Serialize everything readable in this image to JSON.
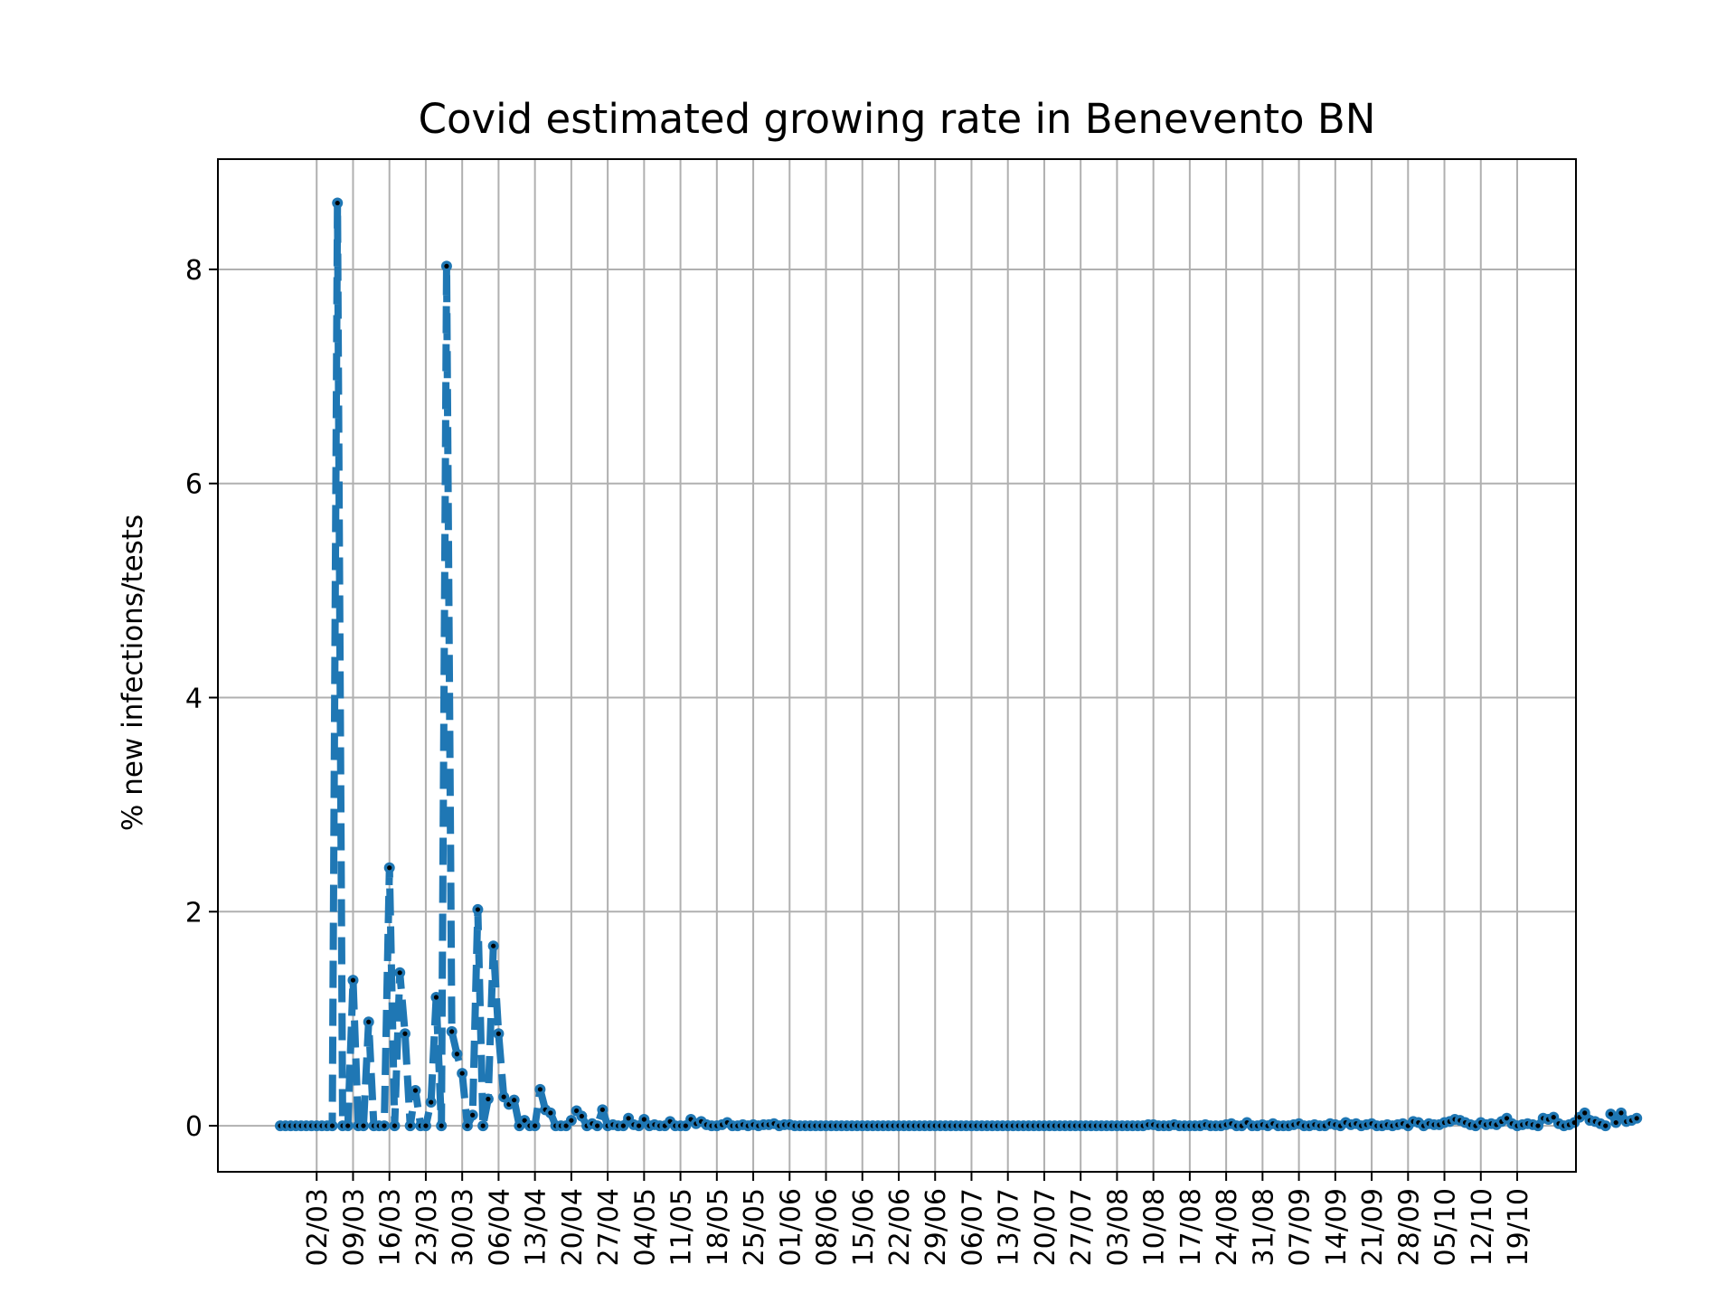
{
  "chart_data": {
    "type": "line",
    "title": "Covid estimated growing rate in Benevento BN",
    "xlabel": "",
    "ylabel": "% new infections/tests",
    "x_start": "2020-02-24",
    "x_end": "2020-10-19",
    "xtick_labels": [
      "02/03",
      "09/03",
      "16/03",
      "23/03",
      "30/03",
      "06/04",
      "13/04",
      "20/04",
      "27/04",
      "04/05",
      "11/05",
      "18/05",
      "25/05",
      "01/06",
      "08/06",
      "15/06",
      "22/06",
      "29/06",
      "06/07",
      "13/07",
      "20/07",
      "27/07",
      "03/08",
      "10/08",
      "17/08",
      "24/08",
      "31/08",
      "07/09",
      "14/09",
      "21/09",
      "28/09",
      "05/10",
      "12/10",
      "19/10"
    ],
    "yticks": [
      0,
      2,
      4,
      6,
      8
    ],
    "ylim": [
      -0.43,
      9.03
    ],
    "grid": true,
    "legend": "none",
    "series": [
      {
        "color": "#1f77b4",
        "values": [
          0,
          0,
          0,
          0,
          0,
          0,
          0,
          0,
          0,
          0,
          0,
          8.62,
          0,
          0,
          1.36,
          0,
          0,
          0.97,
          0,
          0,
          0,
          2.41,
          0,
          1.43,
          0.86,
          0,
          0.33,
          0,
          0,
          0.22,
          1.2,
          0,
          8.03,
          0.88,
          0.67,
          0.49,
          0,
          0.1,
          2.02,
          0,
          0.25,
          1.68,
          0.86,
          0.27,
          0.2,
          0.24,
          0,
          0.05,
          0,
          0,
          0.34,
          0.15,
          0.12,
          0,
          0,
          0,
          0.05,
          0.14,
          0.09,
          0,
          0.02,
          0,
          0.15,
          0,
          0.01,
          0,
          0,
          0.07,
          0.01,
          0,
          0.06,
          0,
          0.01,
          0,
          0,
          0.04,
          0,
          0,
          0,
          0.06,
          0.02,
          0.04,
          0.01,
          0,
          0,
          0.01,
          0.03,
          0,
          0,
          0.01,
          0,
          0.01,
          0,
          0.01,
          0.01,
          0.02,
          0,
          0.01,
          0.01,
          0,
          0,
          0,
          0,
          0,
          0,
          0,
          0,
          0,
          0,
          0,
          0,
          0,
          0,
          0,
          0,
          0,
          0,
          0,
          0,
          0,
          0,
          0,
          0,
          0,
          0,
          0,
          0,
          0,
          0,
          0,
          0,
          0,
          0,
          0,
          0,
          0,
          0,
          0,
          0,
          0,
          0,
          0,
          0,
          0,
          0,
          0,
          0,
          0,
          0,
          0,
          0,
          0,
          0,
          0,
          0,
          0,
          0,
          0,
          0,
          0,
          0,
          0,
          0,
          0,
          0,
          0,
          0,
          0.01,
          0.01,
          0,
          0,
          0,
          0.01,
          0,
          0,
          0,
          0,
          0,
          0.01,
          0,
          0,
          0,
          0.01,
          0.02,
          0,
          0,
          0.03,
          0,
          0,
          0.01,
          0,
          0.02,
          0,
          0,
          0,
          0.01,
          0.02,
          0,
          0,
          0.01,
          0,
          0,
          0.02,
          0.01,
          0,
          0.03,
          0.01,
          0.02,
          0,
          0.01,
          0.02,
          0,
          0,
          0.01,
          0,
          0.01,
          0.02,
          0,
          0.04,
          0.03,
          0,
          0.02,
          0.01,
          0.01,
          0.03,
          0.04,
          0.06,
          0.05,
          0.03,
          0.01,
          0,
          0.03,
          0.01,
          0.02,
          0.01,
          0.04,
          0.07,
          0.02,
          0,
          0.01,
          0.02,
          0.01,
          0,
          0.07,
          0.06,
          0.08,
          0.02,
          0,
          0.01,
          0.03,
          0.08,
          0.12,
          0.05,
          0.04,
          0.02,
          0,
          0.11,
          0.03,
          0.12,
          0.04,
          0.05,
          0.07
        ]
      }
    ]
  }
}
